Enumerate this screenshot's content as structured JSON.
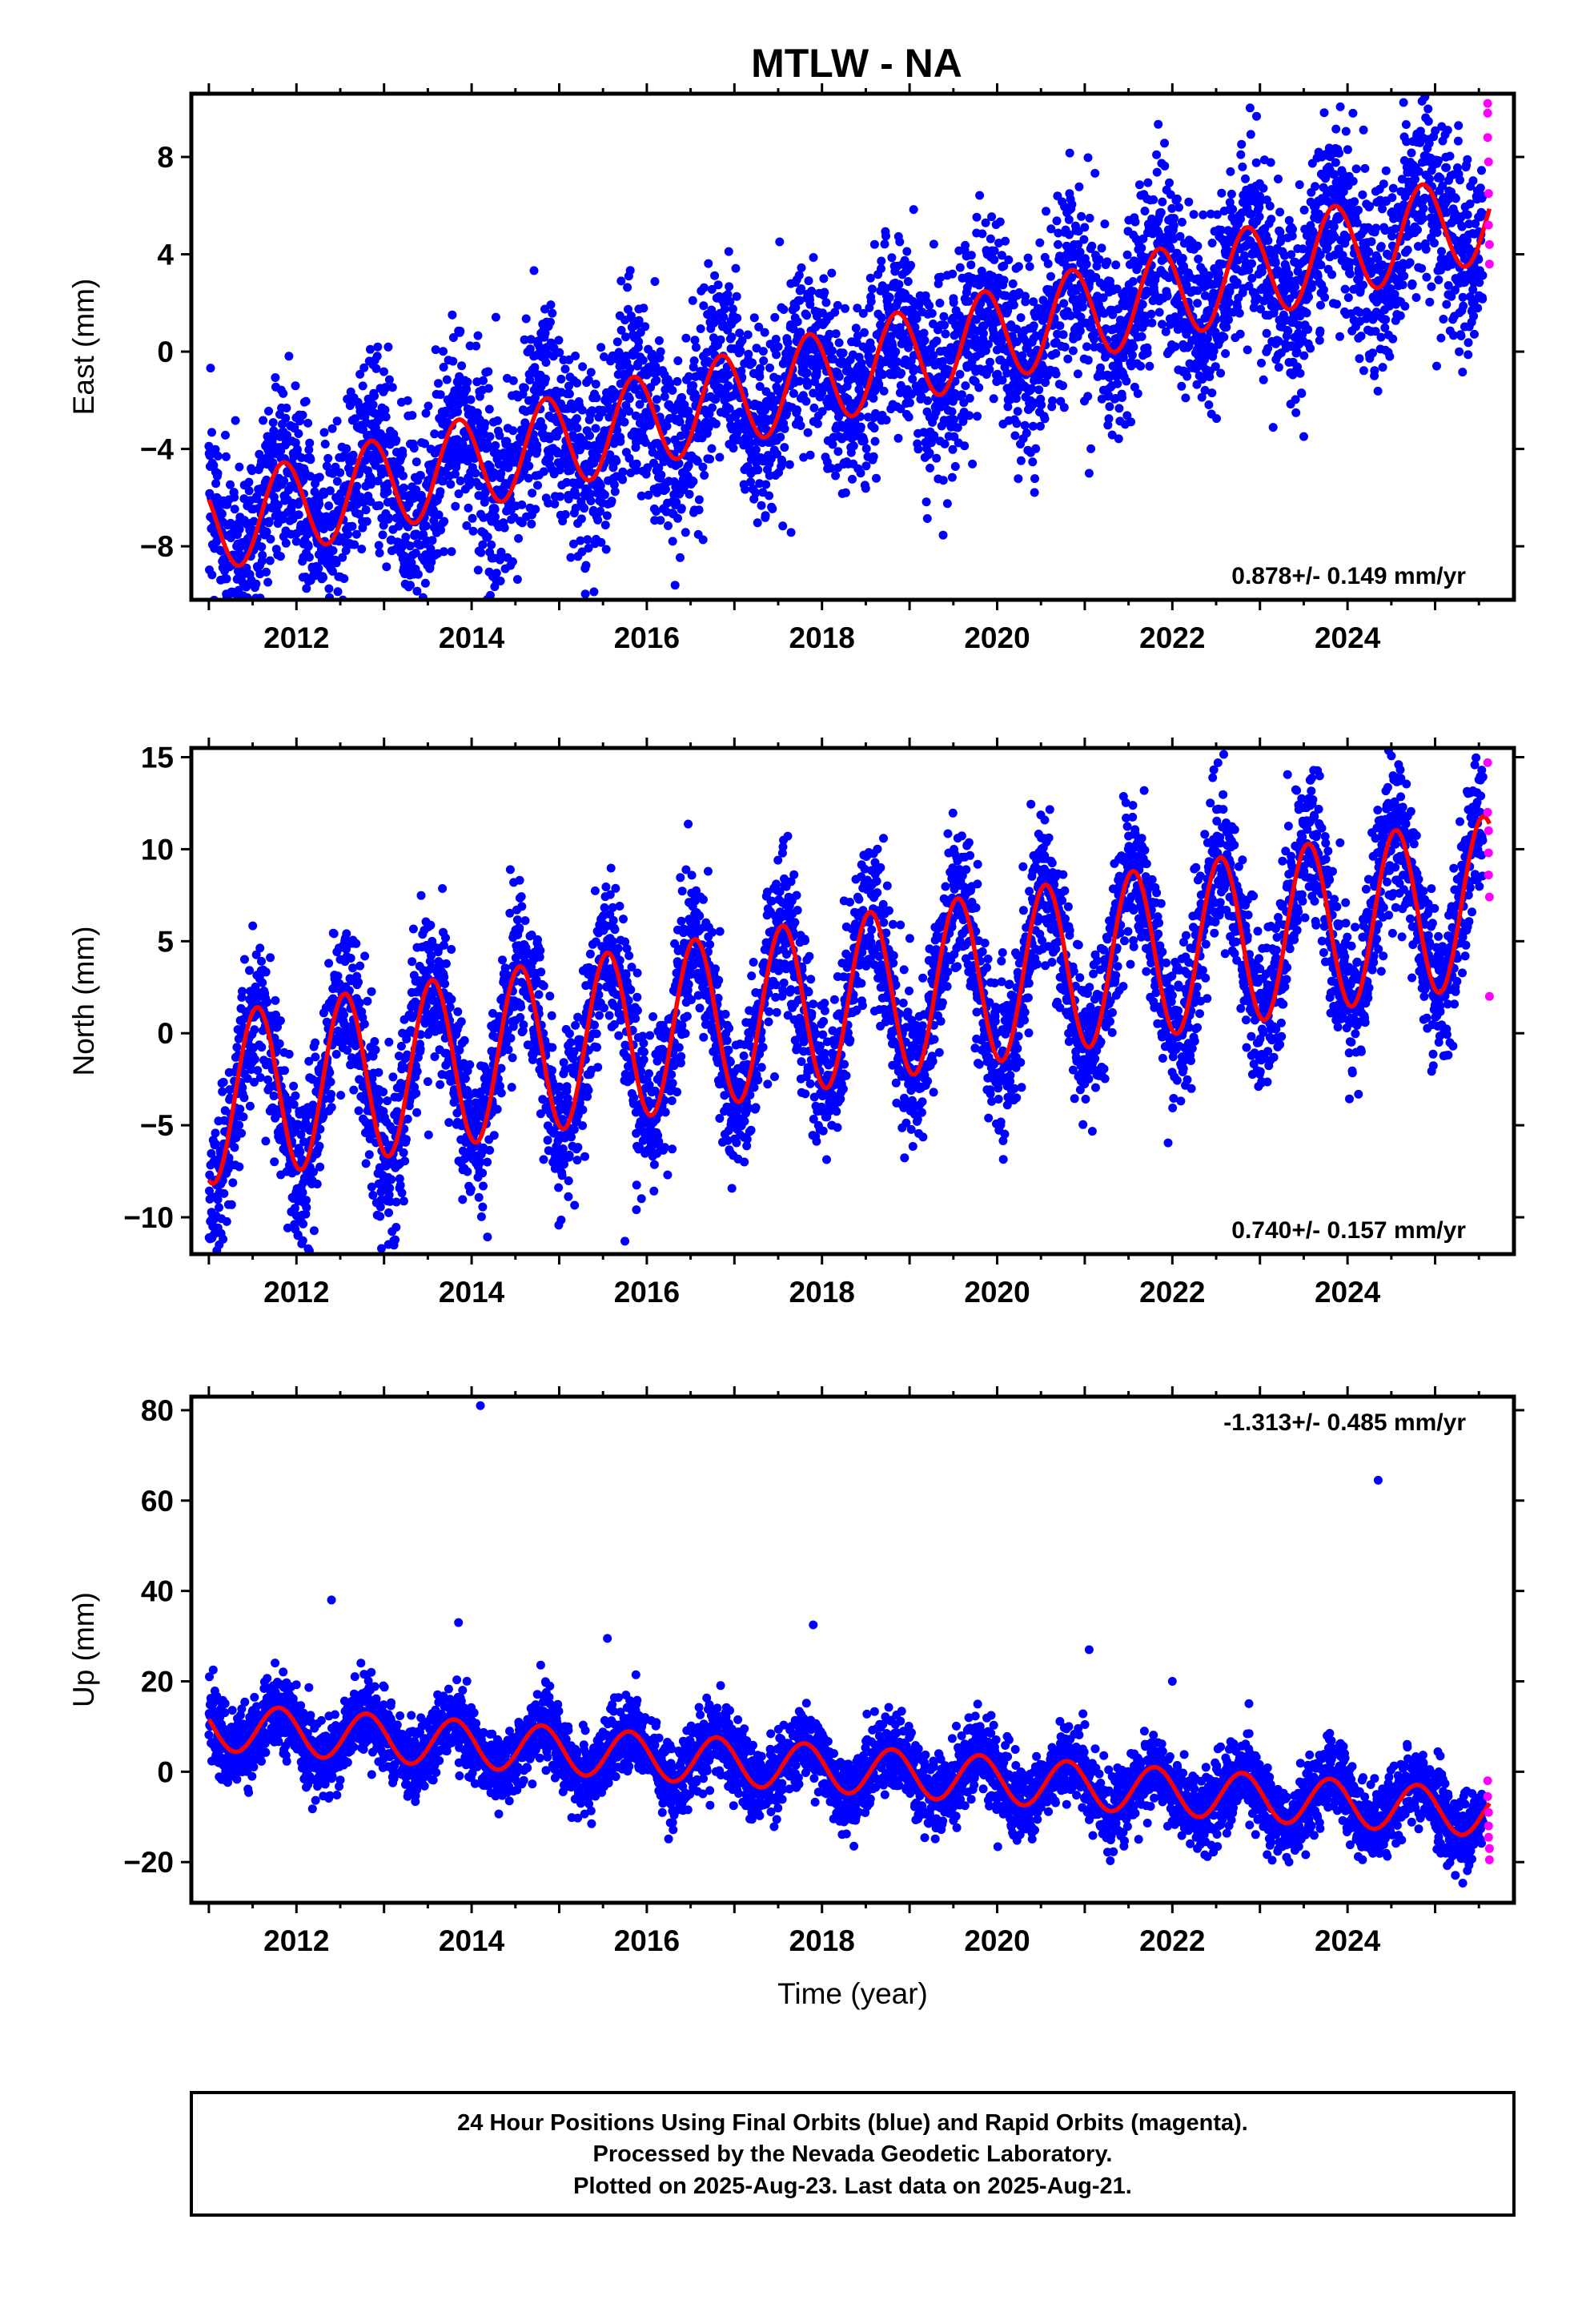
{
  "figure": {
    "title": "MTLW - NA",
    "caption_lines": [
      "24 Hour Positions Using Final Orbits (blue) and Rapid Orbits (magenta).",
      "Processed by the Nevada Geodetic Laboratory.",
      "Plotted on 2025-Aug-23. Last data on 2025-Aug-21."
    ],
    "colors": {
      "final_orbits": "#0000ff",
      "rapid_orbits": "#ff00ff",
      "model_fit": "#ff0000",
      "axes": "#000000"
    }
  },
  "chart_data": [
    {
      "type": "scatter",
      "ylabel": "East (mm)",
      "xlabel": "",
      "xlim": [
        2010.8,
        2025.9
      ],
      "ylim": [
        -10.2,
        10.6
      ],
      "xticks": [
        2012,
        2014,
        2016,
        2018,
        2020,
        2022,
        2024
      ],
      "yticks": [
        -8,
        -4,
        0,
        4,
        8
      ],
      "rate_text": "0.878+/- 0.149 mm/yr",
      "rate_position": "bottom-right",
      "model": {
        "start": 2011.0,
        "end": 2025.62,
        "y_start": -7.2,
        "slope": 0.878,
        "annual_amplitude": 1.9,
        "annual_phase_year": 0.85,
        "breaks": []
      },
      "scatter": 2.0,
      "outliers": [
        [
          2021.05,
          -5.0
        ],
        [
          2013.3,
          -9.6
        ]
      ],
      "series": [
        {
          "name": "Final Orbits",
          "color": "#0000ff",
          "x_range": [
            2011.0,
            2025.55
          ]
        },
        {
          "name": "Rapid Orbits",
          "color": "#ff00ff",
          "x_range": [
            2025.55,
            2025.62
          ],
          "points": [
            [
              2025.6,
              10.2
            ],
            [
              2025.6,
              9.8
            ],
            [
              2025.6,
              8.8
            ],
            [
              2025.61,
              7.8
            ],
            [
              2025.61,
              6.5
            ],
            [
              2025.61,
              5.2
            ],
            [
              2025.62,
              4.4
            ],
            [
              2025.62,
              3.6
            ]
          ]
        }
      ]
    },
    {
      "type": "scatter",
      "ylabel": "North (mm)",
      "xlabel": "",
      "xlim": [
        2010.8,
        2025.9
      ],
      "ylim": [
        -12,
        15.5
      ],
      "xticks": [
        2012,
        2014,
        2016,
        2018,
        2020,
        2022,
        2024
      ],
      "yticks": [
        -10,
        -5,
        0,
        5,
        10,
        15
      ],
      "rate_text": "0.740+/- 0.157 mm/yr",
      "rate_position": "bottom-right",
      "model": {
        "start": 2011.0,
        "end": 2025.62,
        "y_start": -3.6,
        "slope": 0.74,
        "annual_amplitude": 4.6,
        "annual_phase_year": 0.55,
        "breaks": []
      },
      "scatter": 2.1,
      "outliers": [
        [
          2015.75,
          -11.3
        ],
        [
          2016.7,
          8.8
        ],
        [
          2019.55,
          10.6
        ]
      ],
      "series": [
        {
          "name": "Final Orbits",
          "color": "#0000ff",
          "x_range": [
            2011.0,
            2025.55
          ]
        },
        {
          "name": "Rapid Orbits",
          "color": "#ff00ff",
          "x_range": [
            2025.55,
            2025.62
          ],
          "points": [
            [
              2025.6,
              14.7
            ],
            [
              2025.6,
              12.0
            ],
            [
              2025.61,
              11.0
            ],
            [
              2025.61,
              9.8
            ],
            [
              2025.61,
              8.6
            ],
            [
              2025.62,
              7.4
            ],
            [
              2025.62,
              2.0
            ]
          ]
        }
      ]
    },
    {
      "type": "scatter",
      "ylabel": "Up (mm)",
      "xlabel": "Time (year)",
      "xlim": [
        2010.8,
        2025.9
      ],
      "ylim": [
        -29,
        83
      ],
      "xticks": [
        2012,
        2014,
        2016,
        2018,
        2020,
        2022,
        2024
      ],
      "yticks": [
        -20,
        0,
        20,
        40,
        60,
        80
      ],
      "rate_text": "-1.313+/- 0.485 mm/yr",
      "rate_position": "top-right",
      "model": {
        "start": 2011.0,
        "end": 2025.62,
        "y_start": 10.0,
        "slope": -1.313,
        "annual_amplitude": 5.2,
        "annual_phase_year": 0.8,
        "breaks": []
      },
      "scatter": 4.2,
      "outliers": [
        [
          2014.1,
          81.0
        ],
        [
          2024.35,
          64.5
        ],
        [
          2012.4,
          38.0
        ],
        [
          2013.85,
          33.0
        ],
        [
          2017.9,
          32.5
        ],
        [
          2015.55,
          29.5
        ],
        [
          2021.05,
          27.0
        ],
        [
          2022.0,
          20.0
        ]
      ],
      "series": [
        {
          "name": "Final Orbits",
          "color": "#0000ff",
          "x_range": [
            2011.0,
            2025.55
          ]
        },
        {
          "name": "Rapid Orbits",
          "color": "#ff00ff",
          "x_range": [
            2025.55,
            2025.62
          ],
          "points": [
            [
              2025.6,
              -2.0
            ],
            [
              2025.6,
              -5.5
            ],
            [
              2025.61,
              -9.0
            ],
            [
              2025.61,
              -12.0
            ],
            [
              2025.61,
              -14.5
            ],
            [
              2025.62,
              -17.0
            ],
            [
              2025.62,
              -19.5
            ]
          ]
        }
      ]
    }
  ]
}
